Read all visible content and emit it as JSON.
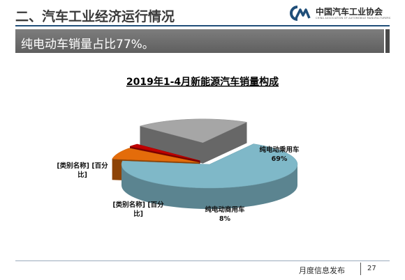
{
  "header": {
    "title": "二、汽车工业经济运行情况",
    "logo_text": "中国汽车工业协会",
    "logo_subtext": "CHINA ASSOCIATION OF AUTOMOBILE MANUFACTURERS"
  },
  "banner": {
    "text": "纯电动车销量占比77%。"
  },
  "footer": {
    "label": "月度信息发布",
    "page_number": "27"
  },
  "colors": {
    "header_line": "#1f4e79",
    "banner_bg": "#6e6e6e",
    "teal_slice": "#7fb8c8",
    "orange_slice": "#e46c0a",
    "red_slice": "#c00000",
    "gray_slice": "#a6a6a6"
  },
  "chart_data": {
    "type": "pie",
    "style": "3d-exploded",
    "title": "2019年1-4月新能源汽车销量构成",
    "legend": "none",
    "slices": [
      {
        "label_lines": [
          "纯电动乘用车",
          "69%"
        ],
        "value": 69,
        "color": "#7fb8c8"
      },
      {
        "label_lines": [
          "纯电动商用车",
          "8%"
        ],
        "value": 8,
        "color": "#e46c0a"
      },
      {
        "label_lines": [
          "[类别名称] [百分",
          "比]"
        ],
        "value": 2,
        "color": "#c00000"
      },
      {
        "label_lines": [
          "[类别名称] [百分",
          "比]"
        ],
        "value": 21,
        "color": "#a6a6a6"
      }
    ]
  }
}
